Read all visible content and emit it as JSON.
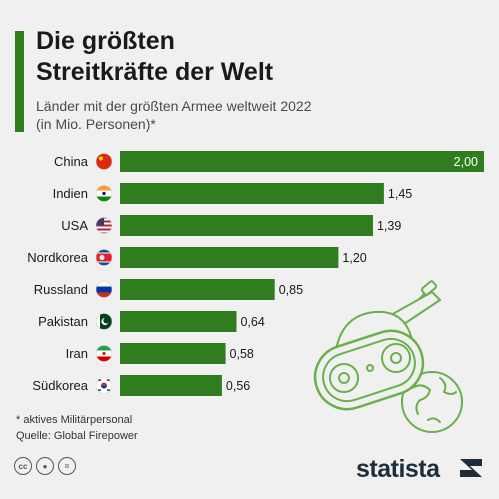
{
  "title_lines": [
    "Die größten",
    "Streitkräfte der Welt"
  ],
  "subtitle_lines": [
    "Länder mit der größten Armee weltweit 2022",
    "(in Mio. Personen)*"
  ],
  "colors": {
    "bar": "#2f7d1e",
    "accent": "#2f7d1e",
    "illustration": "#6ab04c"
  },
  "chart_data": {
    "type": "bar",
    "orientation": "horizontal",
    "categories": [
      "China",
      "Indien",
      "USA",
      "Nordkorea",
      "Russland",
      "Pakistan",
      "Iran",
      "Südkorea"
    ],
    "values": [
      2.0,
      1.45,
      1.39,
      1.2,
      0.85,
      0.64,
      0.58,
      0.56
    ],
    "value_labels": [
      "2,00",
      "1,45",
      "1,39",
      "1,20",
      "0,85",
      "0,64",
      "0,58",
      "0,56"
    ],
    "flag_icons": [
      "china-flag-icon",
      "india-flag-icon",
      "usa-flag-icon",
      "north-korea-flag-icon",
      "russia-flag-icon",
      "pakistan-flag-icon",
      "iran-flag-icon",
      "south-korea-flag-icon"
    ],
    "xlim": [
      0,
      2.0
    ],
    "grid": false,
    "legend": "none"
  },
  "footer": {
    "note": "* aktives Militärpersonal",
    "source": "Quelle: Global Firepower"
  },
  "license_icons": [
    "cc-icon",
    "attribution-icon",
    "no-derivatives-icon"
  ],
  "brand": "statista"
}
